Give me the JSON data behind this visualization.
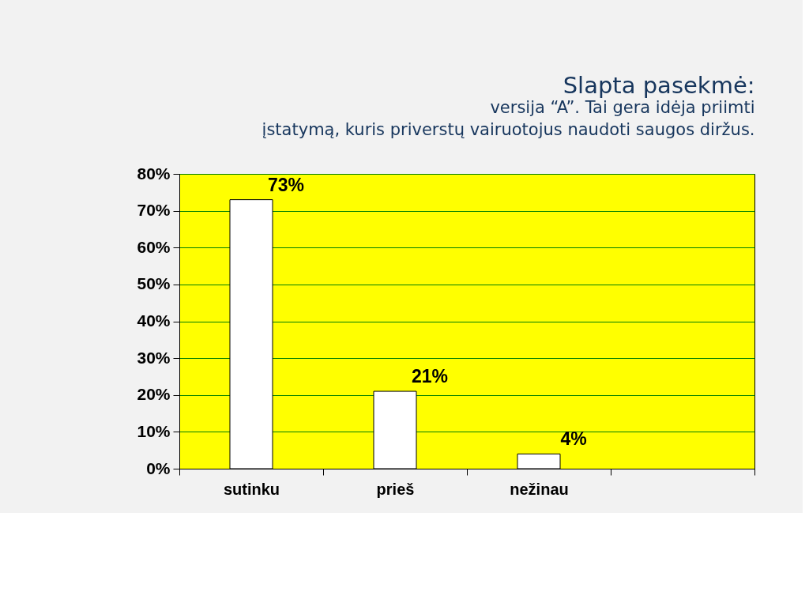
{
  "chart_data": {
    "type": "bar",
    "title": "Slapta pasekmė:",
    "subtitle": "versija “A”. Tai gera idėja priimti įstatymą, kuris priverstų vairuotojus naudoti saugos diržus.",
    "categories": [
      "sutinku",
      "prieš",
      "nežinau",
      null
    ],
    "values": [
      73,
      21,
      4,
      null
    ],
    "color": "#ffffff",
    "value_labels": [
      "73%",
      "21%",
      "4%",
      null
    ],
    "ylim": [
      0,
      80
    ],
    "yticks": [
      {
        "value": 0,
        "label": "0%"
      },
      {
        "value": 10,
        "label": "10%"
      },
      {
        "value": 20,
        "label": "20%"
      },
      {
        "value": 30,
        "label": "30%"
      },
      {
        "value": 40,
        "label": "40%"
      },
      {
        "value": 50,
        "label": "50%"
      },
      {
        "value": 60,
        "label": "60%"
      },
      {
        "value": 70,
        "label": "70%"
      },
      {
        "value": 80,
        "label": "80%"
      }
    ],
    "grid": "y"
  }
}
